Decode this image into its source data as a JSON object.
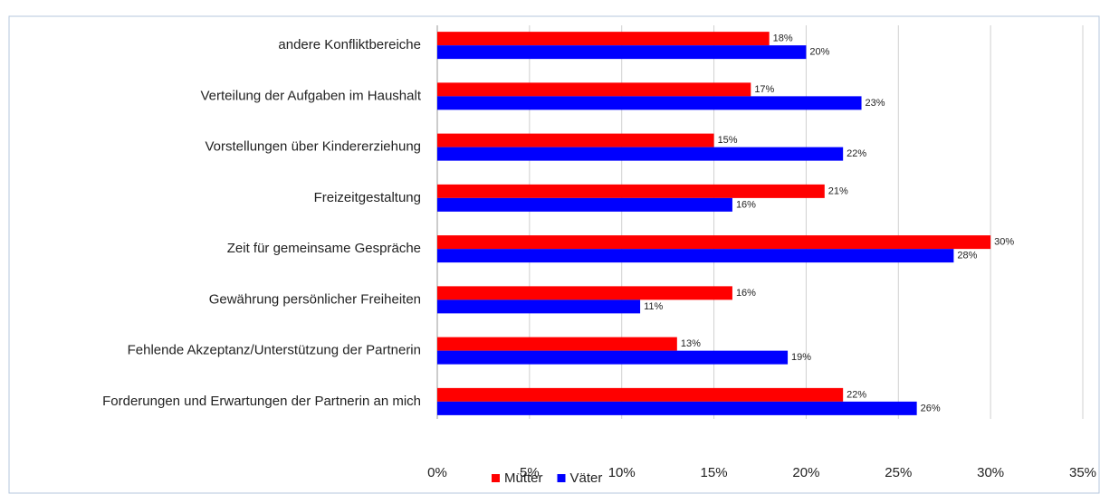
{
  "chart_data": {
    "type": "barh",
    "categories": [
      "andere Konfliktbereiche",
      "Verteilung der Aufgaben im Haushalt",
      "Vorstellungen über Kindererziehung",
      "Freizeitgestaltung",
      "Zeit für gemeinsame Gespräche",
      "Gewährung persönlicher Freiheiten",
      "Fehlende Akzeptanz/Unterstützung der Partnerin",
      "Forderungen und Erwartungen der Partnerin an mich"
    ],
    "series": [
      {
        "name": "Mütter",
        "color": "#ff0000",
        "values": [
          18,
          17,
          15,
          21,
          30,
          16,
          13,
          22
        ],
        "value_labels": [
          "18%",
          "17%",
          "15%",
          "21%",
          "30%",
          "16%",
          "13%",
          "22%"
        ]
      },
      {
        "name": "Väter",
        "color": "#0000ff",
        "values": [
          20,
          23,
          22,
          16,
          28,
          11,
          19,
          26
        ],
        "value_labels": [
          "20%",
          "23%",
          "22%",
          "16%",
          "28%",
          "11%",
          "19%",
          "26%"
        ]
      }
    ],
    "xlim": [
      0,
      35
    ],
    "xticks": [
      {
        "value": 0,
        "label": "0%"
      },
      {
        "value": 5,
        "label": "5%"
      },
      {
        "value": 10,
        "label": "10%"
      },
      {
        "value": 15,
        "label": "15%"
      },
      {
        "value": 20,
        "label": "20%"
      },
      {
        "value": 25,
        "label": "25%"
      },
      {
        "value": 30,
        "label": "30%"
      },
      {
        "value": 35,
        "label": "35%"
      }
    ],
    "grid": true,
    "legend": "bottom"
  }
}
